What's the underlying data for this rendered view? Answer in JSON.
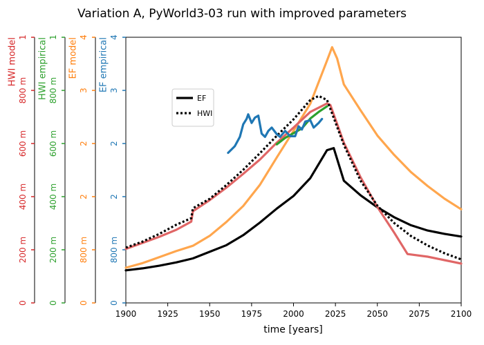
{
  "chart_data": {
    "type": "line",
    "title": "Variation A, PyWorld3-03 run with improved parameters",
    "x_label": "time [years]",
    "xlim": [
      1900,
      2100
    ],
    "xticks": [
      1900,
      1925,
      1950,
      1975,
      2000,
      2025,
      2050,
      2075,
      2100
    ],
    "legend": "upper left",
    "axes": {
      "y4": {
        "label": "HWI model",
        "color": "#d62728",
        "ylim": [
          0,
          1
        ],
        "yticks": [
          0,
          {
            "value": 0.2,
            "label": "200 m"
          },
          {
            "value": 0.4,
            "label": "400 m"
          },
          {
            "value": 0.6,
            "label": "600 m"
          },
          {
            "value": 0.8,
            "label": "800 m"
          },
          1
        ]
      },
      "y3": {
        "label": "HWI empirical",
        "color": "#2ca02c",
        "ylim": [
          0,
          1
        ],
        "yticks": [
          0,
          {
            "value": 0.2,
            "label": "200 m"
          },
          {
            "value": 0.4,
            "label": "400 m"
          },
          {
            "value": 0.6,
            "label": "600 m"
          },
          {
            "value": 0.8,
            "label": "800 m"
          },
          1
        ]
      },
      "y2": {
        "label": "EF model",
        "color": "#ff7f0e",
        "ylim": [
          0,
          4
        ],
        "yticks": [
          0,
          {
            "value": 0.8,
            "label": "800 m"
          },
          {
            "value": 1.6,
            "label": "2"
          },
          {
            "value": 2.4,
            "label": "2"
          },
          {
            "value": 3.2,
            "label": "3"
          },
          4
        ]
      },
      "y": {
        "label": "EF empirical",
        "color": "#1f77b4",
        "ylim": [
          0,
          4
        ],
        "yticks": [
          0,
          {
            "value": 0.8,
            "label": "800 m"
          },
          {
            "value": 1.6,
            "label": "2"
          },
          {
            "value": 2.4,
            "label": "2"
          },
          {
            "value": 3.2,
            "label": "3"
          },
          4
        ]
      }
    },
    "series": [
      {
        "color": "#ffa64d",
        "axis": "y2",
        "x": [
          1900,
          1910,
          1920,
          1930,
          1940,
          1950,
          1960,
          1970,
          1980,
          1990,
          2000,
          2010,
          2020,
          2023,
          2026,
          2030,
          2040,
          2050,
          2060,
          2070,
          2080,
          2090,
          2100
        ],
        "values": [
          0.53,
          0.6,
          0.69,
          0.78,
          0.86,
          1.01,
          1.22,
          1.46,
          1.78,
          2.19,
          2.59,
          3.0,
          3.65,
          3.85,
          3.68,
          3.29,
          2.9,
          2.52,
          2.23,
          1.97,
          1.76,
          1.57,
          1.41
        ]
      },
      {
        "name": "EF",
        "color": "#000000",
        "axis": "y2",
        "x": [
          1900,
          1910,
          1920,
          1930,
          1940,
          1950,
          1960,
          1970,
          1980,
          1990,
          2000,
          2010,
          2020,
          2024,
          2030,
          2040,
          2050,
          2060,
          2070,
          2080,
          2090,
          2100
        ],
        "values": [
          0.49,
          0.52,
          0.56,
          0.61,
          0.67,
          0.77,
          0.87,
          1.02,
          1.21,
          1.42,
          1.61,
          1.88,
          2.3,
          2.33,
          1.84,
          1.62,
          1.44,
          1.29,
          1.17,
          1.09,
          1.04,
          1.0
        ]
      },
      {
        "color": "#e06666",
        "axis": "y4",
        "x": [
          1900,
          1910,
          1920,
          1930,
          1939,
          1940,
          1950,
          1960,
          1970,
          1980,
          1990,
          2000,
          2010,
          2020,
          2022,
          2030,
          2040,
          2050,
          2060,
          2068,
          2080,
          2090,
          2100
        ],
        "values": [
          0.203,
          0.226,
          0.249,
          0.275,
          0.306,
          0.345,
          0.387,
          0.434,
          0.486,
          0.54,
          0.603,
          0.66,
          0.719,
          0.751,
          0.745,
          0.603,
          0.473,
          0.361,
          0.265,
          0.184,
          0.174,
          0.161,
          0.148
        ]
      },
      {
        "name": "HWI",
        "color": "#000000",
        "axis": "y4",
        "dash": "dotted",
        "x": [
          1900,
          1910,
          1920,
          1930,
          1939,
          1940,
          1950,
          1960,
          1970,
          1980,
          1990,
          2000,
          2010,
          2015,
          2020,
          2030,
          2040,
          2050,
          2060,
          2070,
          2080,
          2090,
          2100
        ],
        "values": [
          0.208,
          0.231,
          0.26,
          0.294,
          0.319,
          0.356,
          0.392,
          0.444,
          0.501,
          0.564,
          0.629,
          0.691,
          0.764,
          0.779,
          0.764,
          0.595,
          0.46,
          0.366,
          0.301,
          0.252,
          0.216,
          0.187,
          0.164
        ]
      },
      {
        "color": "#2ca02c",
        "axis": "y3",
        "x": [
          1990,
          1995,
          2000,
          2005,
          2010,
          2015,
          2020
        ],
        "values": [
          0.597,
          0.621,
          0.639,
          0.657,
          0.694,
          0.719,
          0.74
        ]
      },
      {
        "color": "#1f77b4",
        "axis": "y",
        "x": [
          1961,
          1965,
          1968,
          1970,
          1972,
          1973,
          1975,
          1977,
          1979,
          1981,
          1983,
          1985,
          1987,
          1990,
          1992,
          1995,
          1998,
          2001,
          2003,
          2005,
          2007,
          2010,
          2012,
          2015,
          2017
        ],
        "values": [
          2.26,
          2.36,
          2.5,
          2.69,
          2.77,
          2.84,
          2.71,
          2.79,
          2.82,
          2.55,
          2.5,
          2.59,
          2.64,
          2.54,
          2.5,
          2.59,
          2.51,
          2.51,
          2.66,
          2.61,
          2.73,
          2.75,
          2.64,
          2.71,
          2.77
        ]
      }
    ]
  }
}
